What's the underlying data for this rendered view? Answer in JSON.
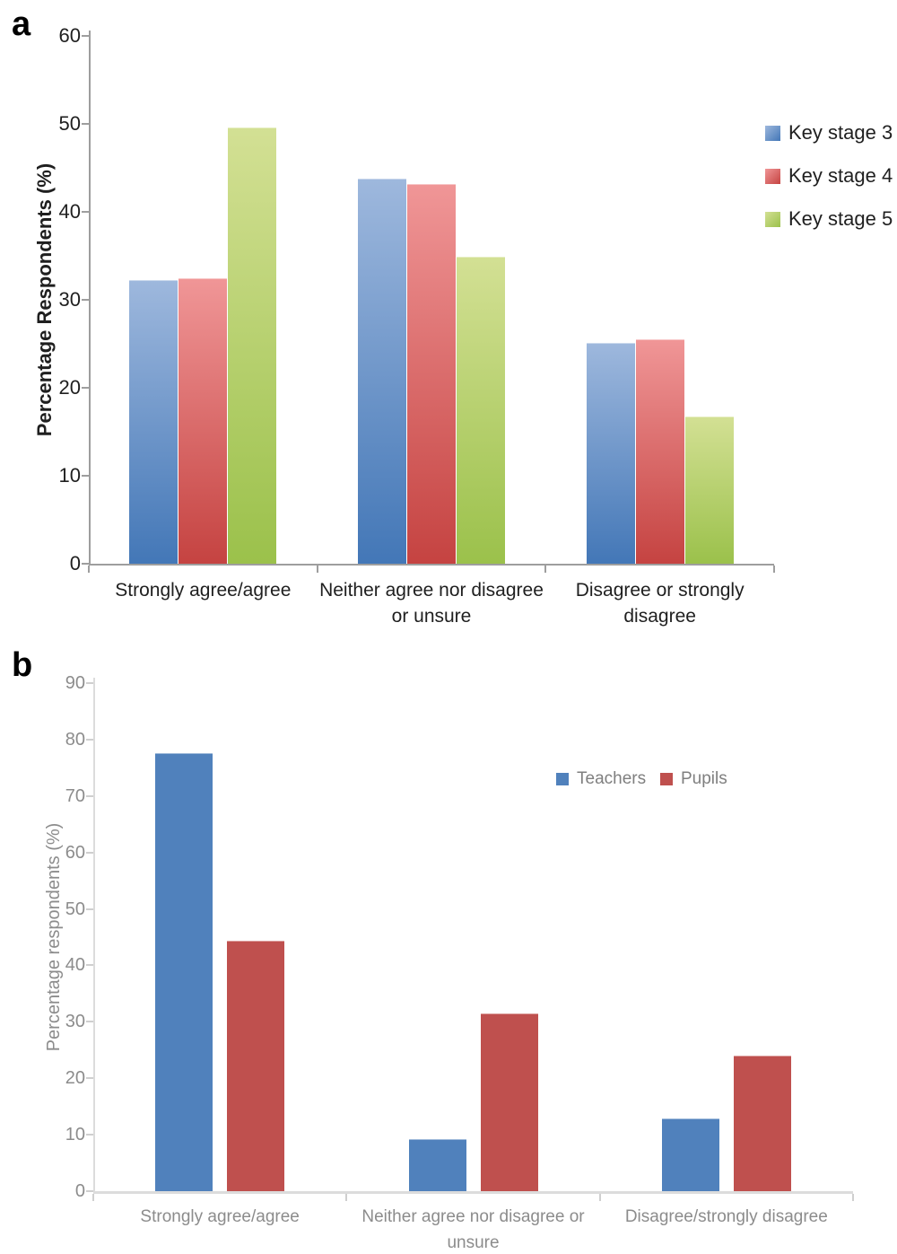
{
  "figure": {
    "panels": [
      {
        "label": "a"
      },
      {
        "label": "b"
      }
    ]
  },
  "chart_data": [
    {
      "type": "bar",
      "panel_label": "a",
      "title": "",
      "xlabel": "",
      "ylabel": "Percentage Respondents (%)",
      "ylim": [
        0,
        60
      ],
      "yticks": [
        0,
        10,
        20,
        30,
        40,
        50,
        60
      ],
      "grid": false,
      "legend_position": "right",
      "categories": [
        "Strongly agree/agree",
        "Neither agree nor disagree\nor unsure",
        "Disagree or strongly\ndisagree"
      ],
      "series": [
        {
          "name": "Key stage 3",
          "values": [
            32.2,
            43.8,
            25.1
          ],
          "color": "#4377B7",
          "color_light": "#9EB8DD"
        },
        {
          "name": "Key stage 4",
          "values": [
            32.5,
            43.2,
            25.5
          ],
          "color": "#C54341",
          "color_light": "#F09697"
        },
        {
          "name": "Key stage 5",
          "values": [
            49.6,
            34.9,
            16.7
          ],
          "color": "#9BC14B",
          "color_light": "#D3E094"
        }
      ]
    },
    {
      "type": "bar",
      "panel_label": "b",
      "title": "",
      "xlabel": "",
      "ylabel": "Percentage respondents (%)",
      "ylim": [
        0,
        90
      ],
      "yticks": [
        0,
        10,
        20,
        30,
        40,
        50,
        60,
        70,
        80,
        90
      ],
      "grid": false,
      "legend_position": "top-inside",
      "categories": [
        "Strongly agree/agree",
        "Neither agree nor disagree or\nunsure",
        "Disagree/strongly disagree"
      ],
      "series": [
        {
          "name": "Teachers",
          "values": [
            77.6,
            9.3,
            12.9
          ],
          "color": "#5081BC"
        },
        {
          "name": "Pupils",
          "values": [
            44.4,
            31.5,
            24.0
          ],
          "color": "#BF504E"
        }
      ]
    }
  ]
}
